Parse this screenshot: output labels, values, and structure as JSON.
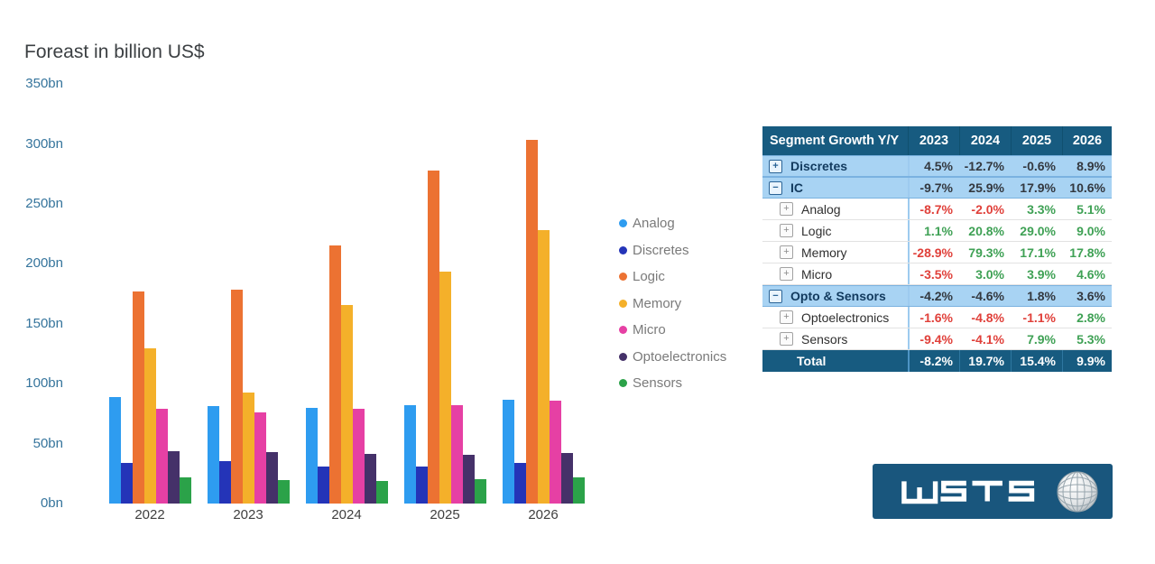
{
  "chart": {
    "title": "Foreast in billion US$",
    "y_axis_labels": [
      "350bn",
      "300bn",
      "250bn",
      "200bn",
      "150bn",
      "100bn",
      "50bn",
      "0bn"
    ]
  },
  "chart_data": {
    "type": "bar",
    "title": "Foreast in billion US$",
    "categories": [
      "2022",
      "2023",
      "2024",
      "2025",
      "2026"
    ],
    "series": [
      {
        "name": "Analog",
        "color": "#2e9cf0",
        "values": [
          88.9,
          81.2,
          79.6,
          82.2,
          86.4
        ]
      },
      {
        "name": "Discretes",
        "color": "#2434b8",
        "values": [
          34.1,
          35.6,
          31.1,
          30.9,
          33.7
        ]
      },
      {
        "name": "Logic",
        "color": "#ec7232",
        "values": [
          176.6,
          178.5,
          215.6,
          278.2,
          303.2
        ]
      },
      {
        "name": "Memory",
        "color": "#f4b02a",
        "values": [
          129.8,
          92.3,
          165.5,
          193.8,
          228.3
        ]
      },
      {
        "name": "Micro",
        "color": "#e640a4",
        "values": [
          79.2,
          76.4,
          78.7,
          81.8,
          85.6
        ]
      },
      {
        "name": "Optoelectronics",
        "color": "#453169",
        "values": [
          43.9,
          43.2,
          41.1,
          40.7,
          41.8
        ]
      },
      {
        "name": "Sensors",
        "color": "#2ba249",
        "values": [
          21.8,
          19.8,
          19.0,
          20.5,
          21.6
        ]
      }
    ],
    "ylabel": "billion US$",
    "ylim": [
      0,
      350
    ],
    "grid": false,
    "legend_position": "right-of-chart"
  },
  "table": {
    "header": [
      "Segment Growth Y/Y",
      "2023",
      "2024",
      "2025",
      "2026"
    ],
    "rows": [
      {
        "label": "Discretes",
        "type": "group",
        "icon": "plus-box",
        "values": [
          "4.5%",
          "-12.7%",
          "-0.6%",
          "8.9%"
        ]
      },
      {
        "label": "IC",
        "type": "group",
        "icon": "minus-box",
        "values": [
          "-9.7%",
          "25.9%",
          "17.9%",
          "10.6%"
        ]
      },
      {
        "label": "Analog",
        "type": "child",
        "icon": "plus-box",
        "values": [
          "-8.7%",
          "-2.0%",
          "3.3%",
          "5.1%"
        ]
      },
      {
        "label": "Logic",
        "type": "child",
        "icon": "plus-box",
        "values": [
          "1.1%",
          "20.8%",
          "29.0%",
          "9.0%"
        ]
      },
      {
        "label": "Memory",
        "type": "child",
        "icon": "plus-box",
        "values": [
          "-28.9%",
          "79.3%",
          "17.1%",
          "17.8%"
        ]
      },
      {
        "label": "Micro",
        "type": "child",
        "icon": "plus-box",
        "values": [
          "-3.5%",
          "3.0%",
          "3.9%",
          "4.6%"
        ]
      },
      {
        "label": "Opto & Sensors",
        "type": "group",
        "icon": "minus-box",
        "values": [
          "-4.2%",
          "-4.6%",
          "1.8%",
          "3.6%"
        ]
      },
      {
        "label": "Optoelectronics",
        "type": "child",
        "icon": "plus-box",
        "values": [
          "-1.6%",
          "-4.8%",
          "-1.1%",
          "2.8%"
        ]
      },
      {
        "label": "Sensors",
        "type": "child",
        "icon": "plus-box",
        "values": [
          "-9.4%",
          "-4.1%",
          "7.9%",
          "5.3%"
        ]
      },
      {
        "label": "Total",
        "type": "total",
        "icon": null,
        "values": [
          "-8.2%",
          "19.7%",
          "15.4%",
          "9.9%"
        ]
      }
    ]
  },
  "logo": {
    "text": "WSTS"
  },
  "colors": {
    "axis_label": "#35749c",
    "title": "#3c4043",
    "legend_text": "#7a7a7a",
    "table_header_bg": "#175b80",
    "table_group_bg": "#a8d3f3",
    "negative": "#e0403a",
    "positive": "#3fa155",
    "logo_bg": "#19567d"
  }
}
